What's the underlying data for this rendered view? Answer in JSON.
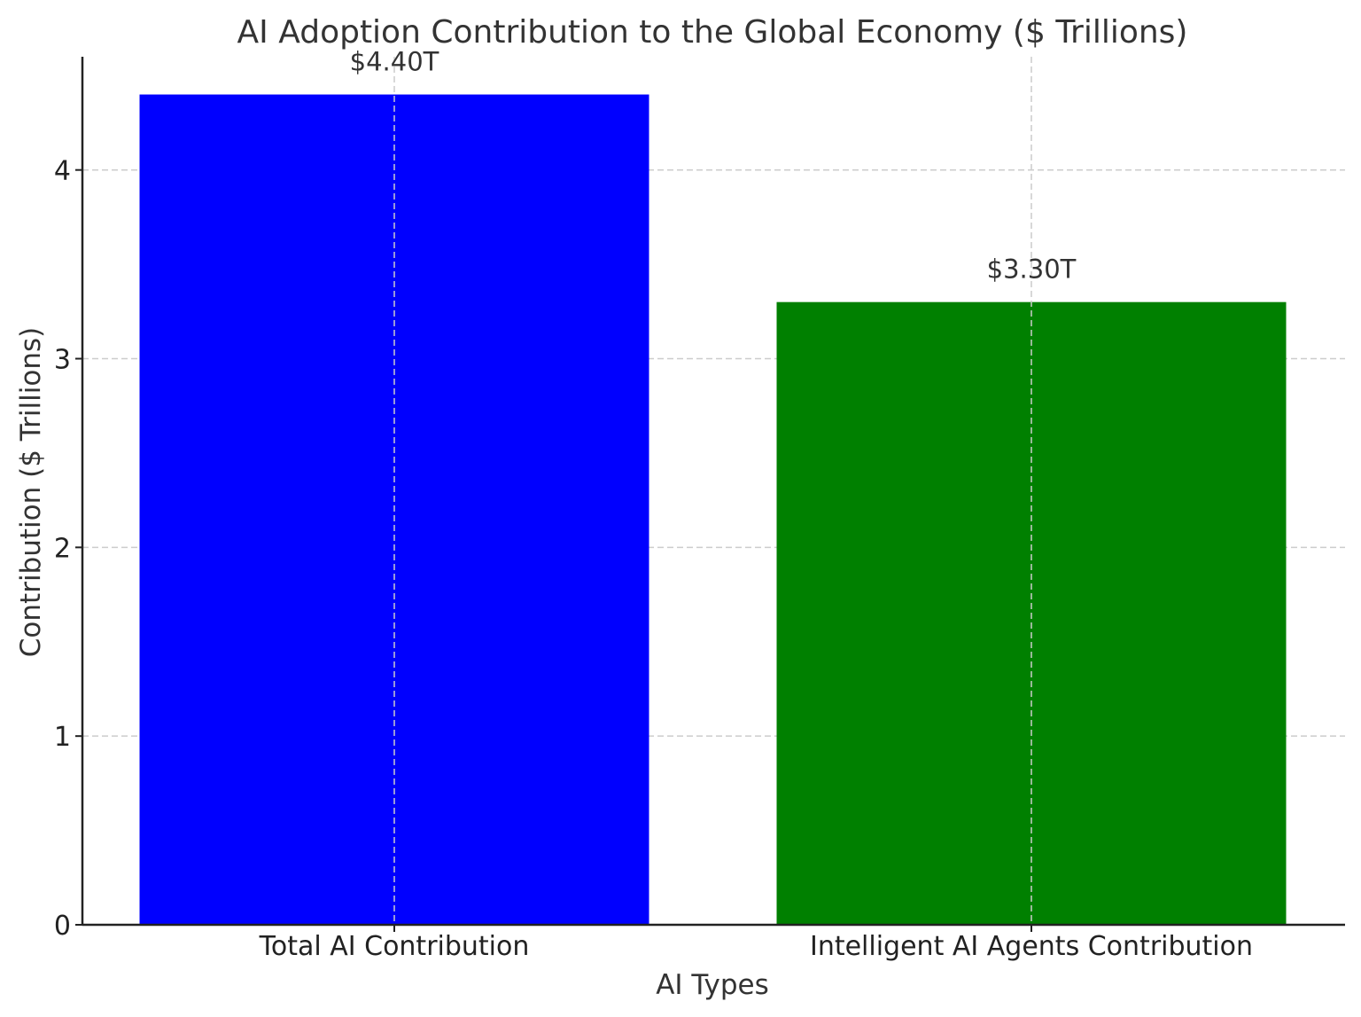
{
  "chart_data": {
    "type": "bar",
    "title": "AI Adoption Contribution to the Global Economy ($ Trillions)",
    "xlabel": "AI Types",
    "ylabel": "Contribution ($ Trillions)",
    "categories": [
      "Total AI Contribution",
      "Intelligent AI Agents Contribution"
    ],
    "values": [
      4.4,
      3.3
    ],
    "data_labels": [
      "$4.40T",
      "$3.30T"
    ],
    "colors": [
      "#0000ff",
      "#008000"
    ],
    "ylim": [
      0,
      4.6
    ],
    "yticks": [
      0,
      1,
      2,
      3,
      4
    ],
    "grid": true,
    "legend": "none"
  }
}
